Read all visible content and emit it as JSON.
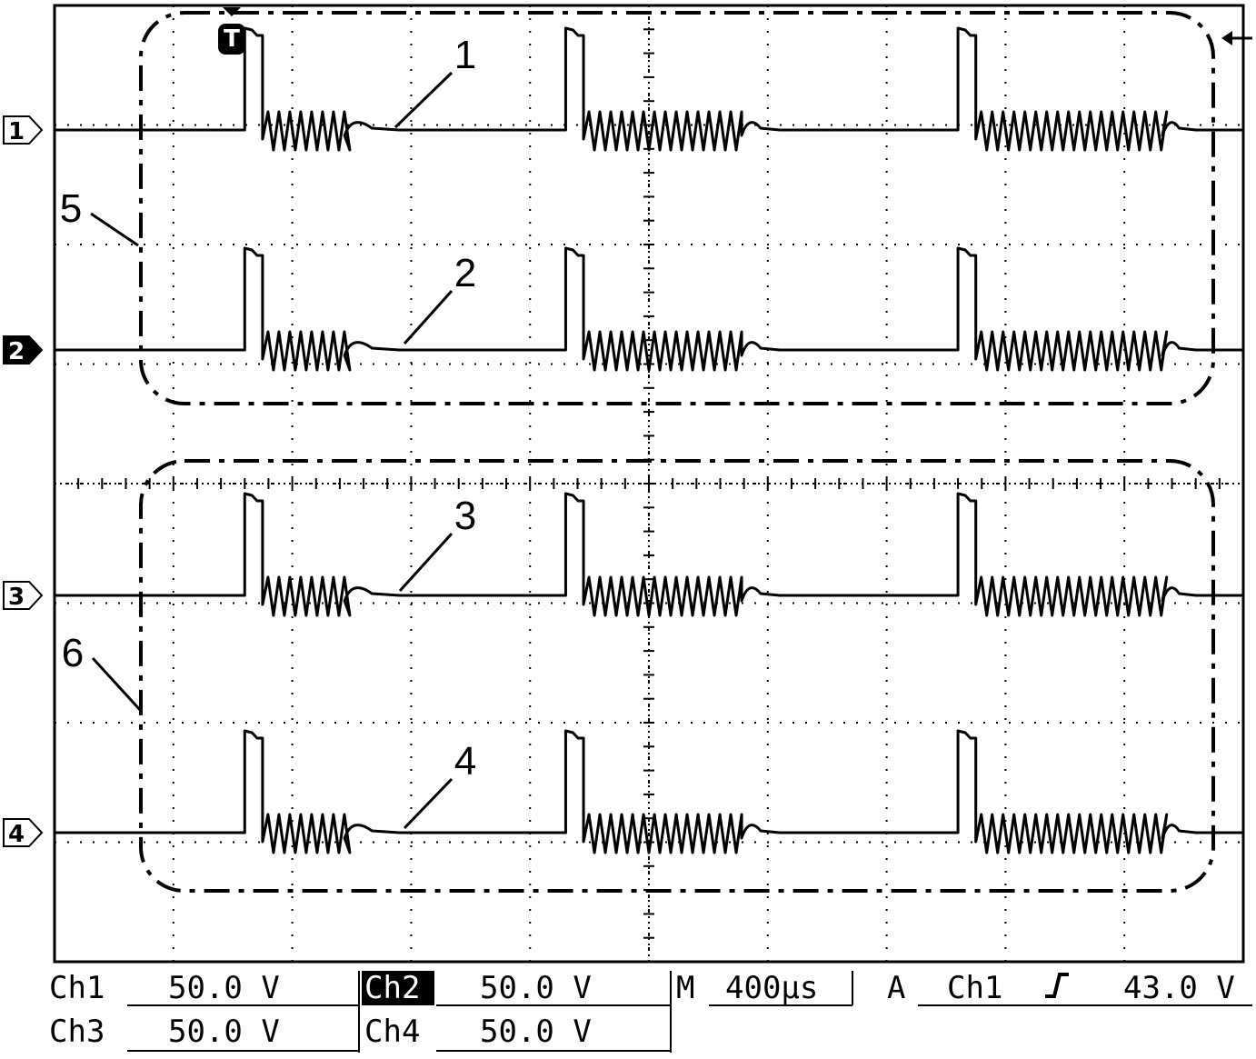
{
  "chart_data": {
    "type": "line",
    "grid": true,
    "x_divisions": 10,
    "y_divisions": 8,
    "time_per_div_us": 400,
    "series": [
      {
        "name": "1",
        "ref_label": "1",
        "highlight": false,
        "bursts": [
          {
            "pulse_start": 0.16,
            "pulse_end": 0.17,
            "switch_end": 0.244,
            "tail_end": 0.29,
            "spike_at": null
          },
          {
            "pulse_start": 0.43,
            "pulse_end": 0.44,
            "switch_end": 0.578,
            "tail_end": 0.61,
            "spike_at": null
          },
          {
            "pulse_start": 0.76,
            "pulse_end": 0.77,
            "switch_end": 0.932,
            "tail_end": 0.96,
            "spike_at": null
          }
        ]
      },
      {
        "name": "2",
        "ref_label": "2",
        "highlight": true,
        "bursts": [
          {
            "pulse_start": 0.16,
            "pulse_end": 0.17,
            "switch_end": 0.244,
            "tail_end": 0.29,
            "spike_at": 0.24
          },
          {
            "pulse_start": 0.43,
            "pulse_end": 0.44,
            "switch_end": 0.578,
            "tail_end": 0.61,
            "spike_at": 0.57
          },
          {
            "pulse_start": 0.76,
            "pulse_end": 0.77,
            "switch_end": 0.932,
            "tail_end": 0.96,
            "spike_at": 0.93
          }
        ]
      },
      {
        "name": "3",
        "ref_label": "3",
        "highlight": false,
        "bursts": [
          {
            "pulse_start": 0.16,
            "pulse_end": 0.17,
            "switch_end": 0.244,
            "tail_end": 0.29,
            "spike_at": null
          },
          {
            "pulse_start": 0.43,
            "pulse_end": 0.44,
            "switch_end": 0.578,
            "tail_end": 0.61,
            "spike_at": null
          },
          {
            "pulse_start": 0.76,
            "pulse_end": 0.77,
            "switch_end": 0.932,
            "tail_end": 0.96,
            "spike_at": null
          }
        ]
      },
      {
        "name": "4",
        "ref_label": "4",
        "highlight": false,
        "bursts": [
          {
            "pulse_start": 0.16,
            "pulse_end": 0.17,
            "switch_end": 0.244,
            "tail_end": 0.29,
            "spike_at": 0.24
          },
          {
            "pulse_start": 0.43,
            "pulse_end": 0.44,
            "switch_end": 0.578,
            "tail_end": 0.61,
            "spike_at": 0.56
          },
          {
            "pulse_start": 0.76,
            "pulse_end": 0.77,
            "switch_end": 0.932,
            "tail_end": 0.96,
            "spike_at": 0.93
          }
        ]
      }
    ],
    "annotations": [
      {
        "label": "1",
        "target_series": "1"
      },
      {
        "label": "2",
        "target_series": "2"
      },
      {
        "label": "3",
        "target_series": "3"
      },
      {
        "label": "4",
        "target_series": "4"
      },
      {
        "label": "5",
        "target_series": "group-1-2"
      },
      {
        "label": "6",
        "target_series": "group-3-4"
      }
    ]
  },
  "trigger_marker": "T",
  "readout": {
    "ch1": {
      "name": "Ch1",
      "value": "50.0 V"
    },
    "ch2": {
      "name": "Ch2",
      "value": "50.0 V"
    },
    "ch3": {
      "name": "Ch3",
      "value": "50.0 V"
    },
    "ch4": {
      "name": "Ch4",
      "value": "50.0 V"
    },
    "timebase": {
      "name": "M",
      "value": "400µs"
    },
    "trigger": {
      "mode": "A",
      "source": "Ch1",
      "slope": "rising",
      "level": "43.0 V"
    }
  }
}
